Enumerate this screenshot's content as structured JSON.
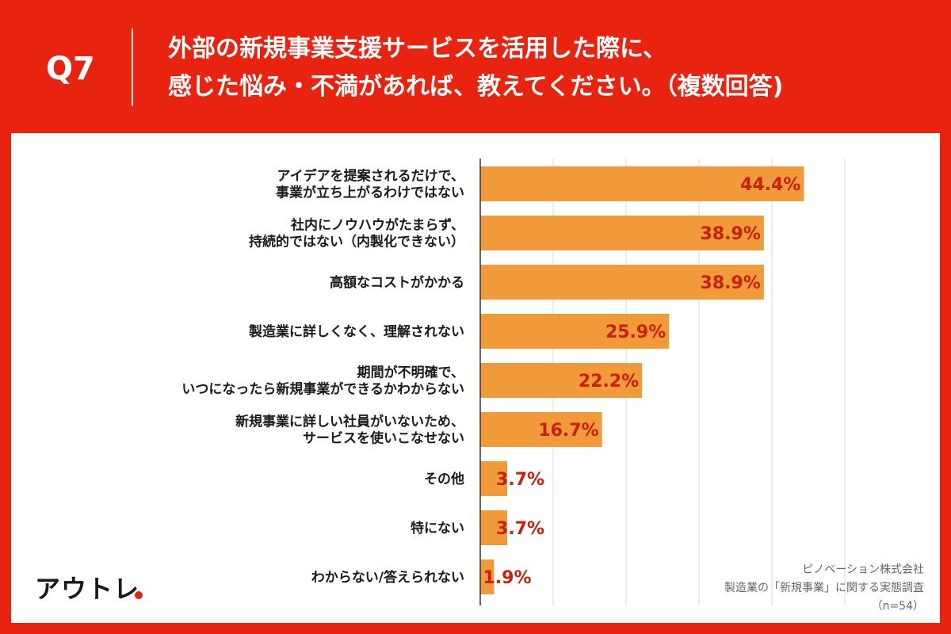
{
  "header": {
    "question_number": "Q7",
    "question_line1": "外部の新規事業支援サービスを活用した際に、",
    "question_line2": "感じた悩み・不満があれば、教えてください。（複数回答)"
  },
  "brand": {
    "name": "アウトレ"
  },
  "source": {
    "company": "ピノベーション株式会社",
    "survey": "製造業の「新規事業」に関する実態調査",
    "sample": "（n=54）"
  },
  "colors": {
    "background": "#e8230f",
    "bar": "#f09a3a",
    "value_label": "#c8200c",
    "grid": "#d9d9d9"
  },
  "chart_data": {
    "type": "bar",
    "orientation": "horizontal",
    "unit": "%",
    "categories": [
      [
        "アイデアを提案されるだけで、",
        "事業が立ち上がるわけではない"
      ],
      [
        "社内にノウハウがたまらず、",
        "持続的ではない（内製化できない）"
      ],
      [
        "高額なコストがかかる"
      ],
      [
        "製造業に詳しくなく、理解されない"
      ],
      [
        "期間が不明確で、",
        "いつになったら新規事業ができるかわからない"
      ],
      [
        "新規事業に詳しい社員がいないため、",
        "サービスを使いこなせない"
      ],
      [
        "その他"
      ],
      [
        "特にない"
      ],
      [
        "わからない/答えられない"
      ]
    ],
    "values": [
      44.4,
      38.9,
      38.9,
      25.9,
      22.2,
      16.7,
      3.7,
      3.7,
      1.9
    ],
    "value_labels": [
      "44.4%",
      "38.9%",
      "38.9%",
      "25.9%",
      "22.2%",
      "16.7%",
      "3.7%",
      "3.7%",
      "1.9%"
    ],
    "xlim": [
      0,
      50
    ],
    "grid": true
  }
}
